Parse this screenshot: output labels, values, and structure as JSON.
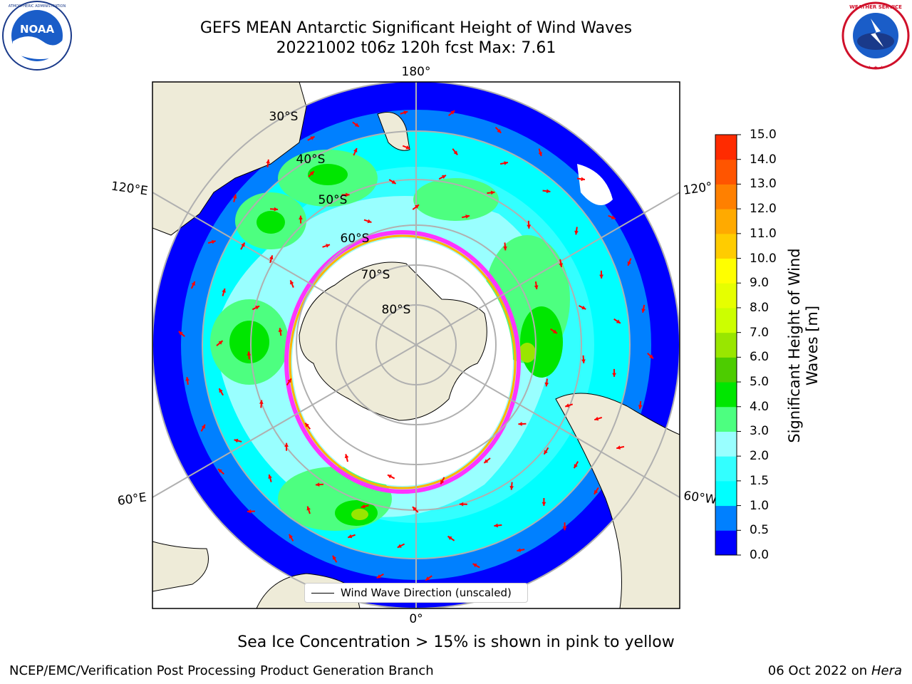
{
  "title": {
    "line1": "GEFS MEAN Antarctic Significant Height of Wind Waves",
    "line2": "20221002 t06z 120h fcst   Max: 7.61"
  },
  "logos": {
    "left": "noaa-logo",
    "right": "nws-logo"
  },
  "map": {
    "projection": "south polar stereographic",
    "longitude_labels": [
      "180°",
      "120°E",
      "120°",
      "60°E",
      "60°W",
      "0°"
    ],
    "latitude_labels": [
      "30°S",
      "40°S",
      "50°S",
      "60°S",
      "70°S",
      "80°S"
    ],
    "legend": "Wind Wave Direction (unscaled)",
    "land_color": "#eeebd8",
    "arrow_color": "#ff0000",
    "sea_ice_colors": [
      "#ff33ff",
      "#ffb300",
      "#ffff00"
    ]
  },
  "colorbar": {
    "label": "Significant Height of Wind Waves [m]",
    "ticks": [
      "0.0",
      "0.5",
      "1.0",
      "1.5",
      "2.0",
      "3.0",
      "4.0",
      "5.0",
      "6.0",
      "7.0",
      "8.0",
      "9.0",
      "10.0",
      "11.0",
      "12.0",
      "13.0",
      "14.0",
      "15.0"
    ],
    "colors": [
      "#0000ff",
      "#0080ff",
      "#00ffff",
      "#33ffff",
      "#99ffff",
      "#4dff80",
      "#00e600",
      "#4dcc00",
      "#99e600",
      "#ccff00",
      "#e6ff00",
      "#ffff00",
      "#ffcc00",
      "#ffaa00",
      "#ff8000",
      "#ff5500",
      "#ff2b00"
    ]
  },
  "note": "Sea Ice Concentration > 15% is shown in pink to yellow",
  "footer": {
    "left": "NCEP/EMC/Verification Post Processing Product Generation Branch",
    "right_date": "06 Oct 2022 on ",
    "right_host": "Hera"
  }
}
